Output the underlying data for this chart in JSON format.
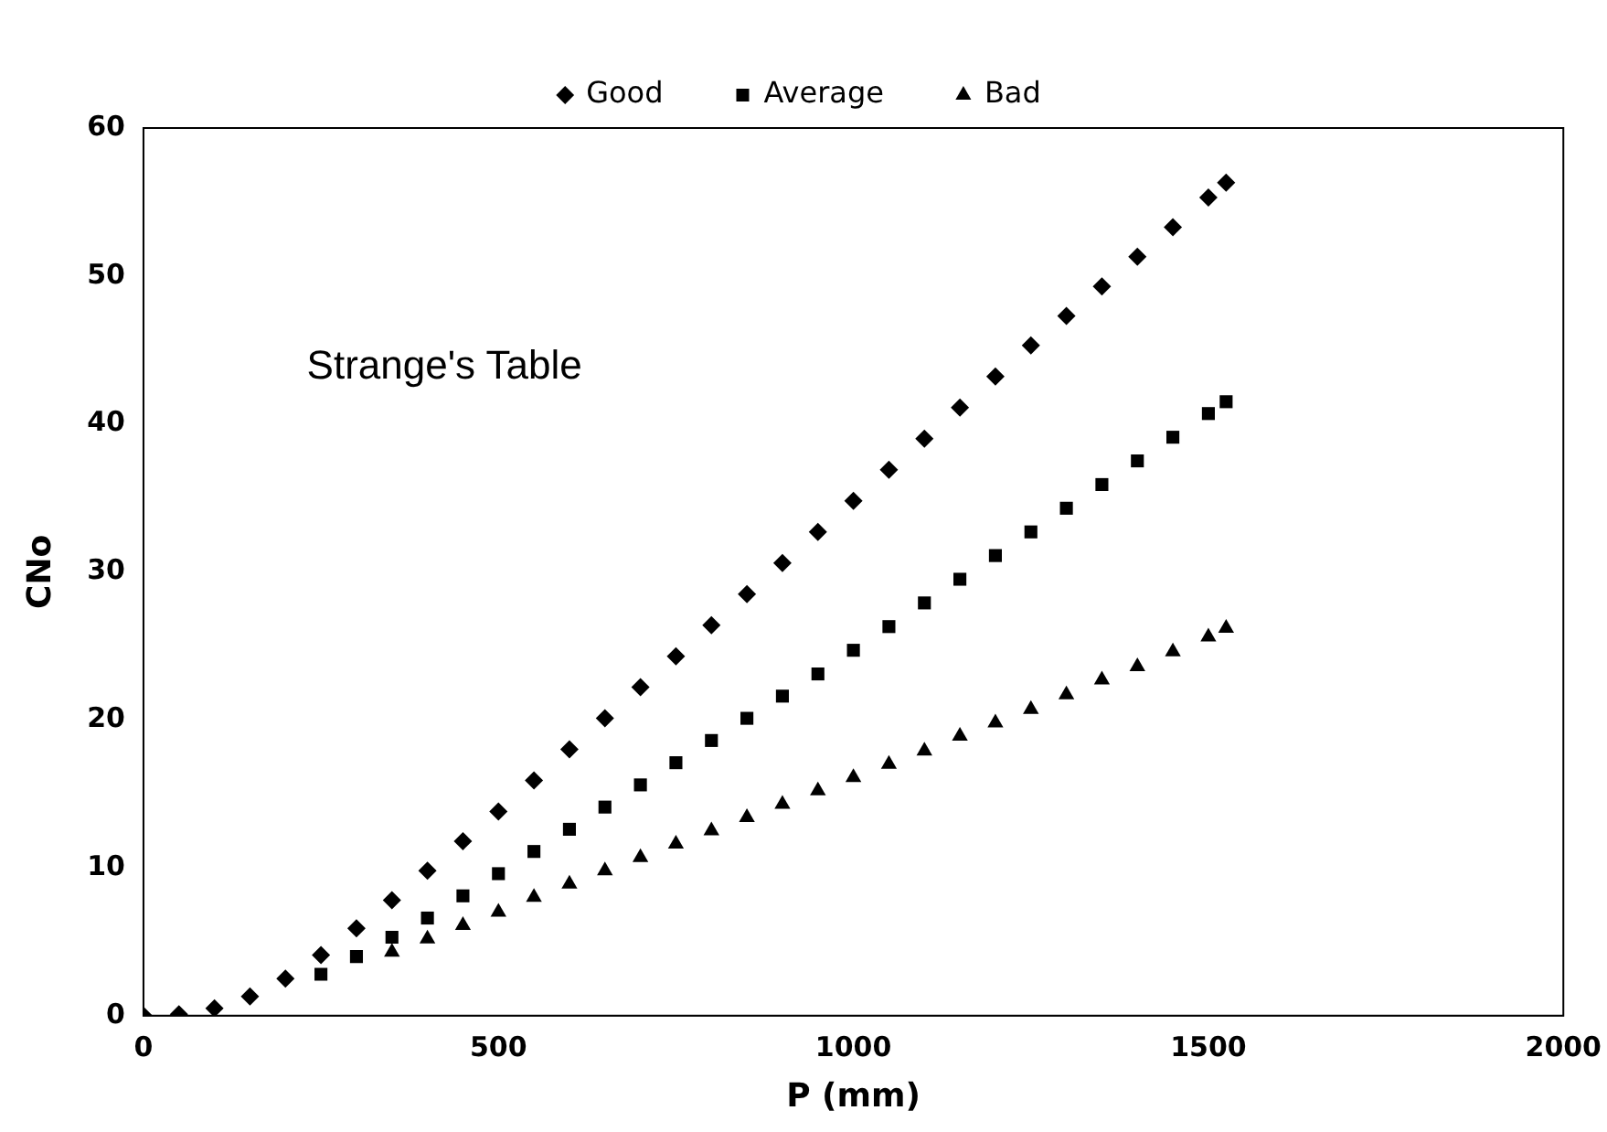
{
  "chart_data": {
    "type": "scatter",
    "xlabel": "P (mm)",
    "ylabel": "CNo",
    "annotations": [
      "Strange's Table"
    ],
    "x": [
      0,
      50,
      100,
      150,
      200,
      250,
      300,
      350,
      400,
      450,
      500,
      550,
      600,
      650,
      700,
      750,
      800,
      850,
      900,
      950,
      1000,
      1050,
      1100,
      1150,
      1200,
      1250,
      1300,
      1350,
      1400,
      1450,
      1500,
      1525
    ],
    "series": [
      {
        "name": "Good",
        "color": "#000000",
        "marker": "diamond",
        "values": [
          0,
          0.1,
          0.5,
          1.3,
          2.5,
          4.1,
          5.9,
          7.8,
          9.8,
          11.8,
          13.8,
          15.9,
          18.0,
          20.1,
          22.2,
          24.3,
          26.4,
          28.5,
          30.6,
          32.7,
          34.8,
          36.9,
          39.0,
          41.1,
          43.2,
          45.3,
          47.3,
          49.3,
          51.3,
          53.3,
          55.3,
          56.3
        ]
      },
      {
        "name": "Average",
        "color": "#000000",
        "marker": "square",
        "x": [
          250,
          300,
          350,
          400,
          450,
          500,
          550,
          600,
          650,
          700,
          750,
          800,
          850,
          900,
          950,
          1000,
          1050,
          1100,
          1150,
          1200,
          1250,
          1300,
          1350,
          1400,
          1450,
          1500,
          1525
        ],
        "values": [
          2.8,
          4.0,
          5.3,
          6.6,
          8.1,
          9.6,
          11.1,
          12.6,
          14.1,
          15.6,
          17.1,
          18.6,
          20.1,
          21.6,
          23.1,
          24.7,
          26.3,
          27.9,
          29.5,
          31.1,
          32.7,
          34.3,
          35.9,
          37.5,
          39.1,
          40.7,
          41.5
        ]
      },
      {
        "name": "Bad",
        "color": "#000000",
        "marker": "triangle",
        "x": [
          350,
          400,
          450,
          500,
          550,
          600,
          650,
          700,
          750,
          800,
          850,
          900,
          950,
          1000,
          1050,
          1100,
          1150,
          1200,
          1250,
          1300,
          1350,
          1400,
          1450,
          1500,
          1525
        ],
        "values": [
          4.3,
          5.2,
          6.1,
          7.0,
          8.0,
          8.9,
          9.8,
          10.7,
          11.6,
          12.5,
          13.4,
          14.3,
          15.2,
          16.1,
          17.0,
          17.9,
          18.9,
          19.8,
          20.7,
          21.7,
          22.7,
          23.6,
          24.6,
          25.6,
          26.2
        ]
      }
    ],
    "xlim": [
      0,
      2000
    ],
    "xticks": [
      0,
      500,
      1000,
      1500,
      2000
    ],
    "ylim": [
      0,
      60
    ],
    "yticks": [
      0,
      10,
      20,
      30,
      40,
      50,
      60
    ],
    "grid": false,
    "legend": "top"
  }
}
